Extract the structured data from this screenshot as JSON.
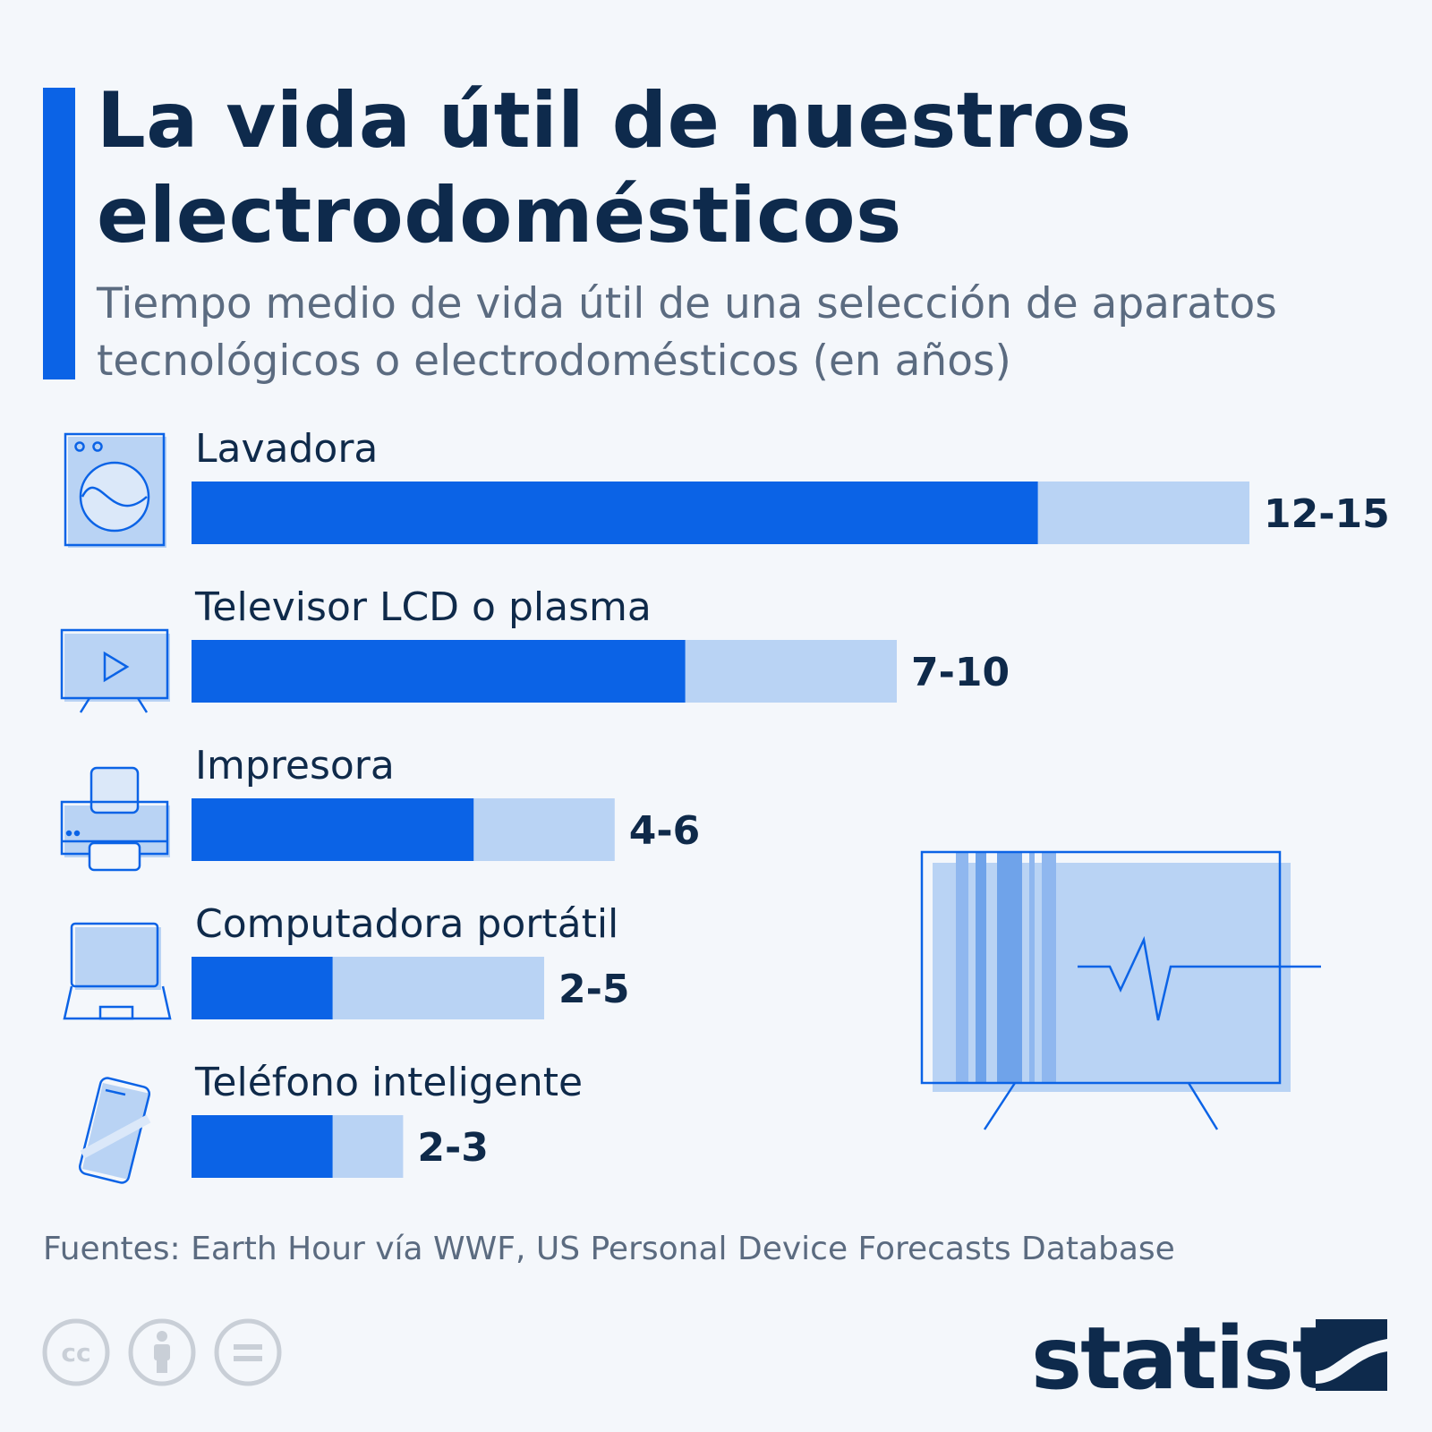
{
  "title": "La vida útil de nuestros electrodomésticos",
  "subtitle": "Tiempo medio de vida útil de una selección de aparatos tecnológicos o electrodomésticos (en años)",
  "source": "Fuentes: Earth Hour vía WWF, US Personal Device Forecasts Database",
  "brand": "statista",
  "colors": {
    "accent": "#0b63e6",
    "range": "#b9d3f4",
    "background": "#f4f7fb",
    "text": "#0f2a4a"
  },
  "icons": [
    "washing-machine-icon",
    "tv-icon",
    "printer-icon",
    "laptop-icon",
    "smartphone-icon",
    "cc-icon",
    "attribution-icon",
    "no-derivatives-icon",
    "statista-logo"
  ],
  "chart_data": {
    "type": "bar",
    "orientation": "horizontal",
    "categories": [
      "Lavadora",
      "Televisor LCD o plasma",
      "Impresora",
      "Computadora portátil",
      "Teléfono inteligente"
    ],
    "labels": [
      "12-15",
      "7-10",
      "4-6",
      "2-5",
      "2-3"
    ],
    "min": [
      12,
      7,
      4,
      2,
      2
    ],
    "max": [
      15,
      10,
      6,
      5,
      3
    ],
    "xlim": [
      0,
      15
    ],
    "grid": false,
    "legend": "none"
  }
}
